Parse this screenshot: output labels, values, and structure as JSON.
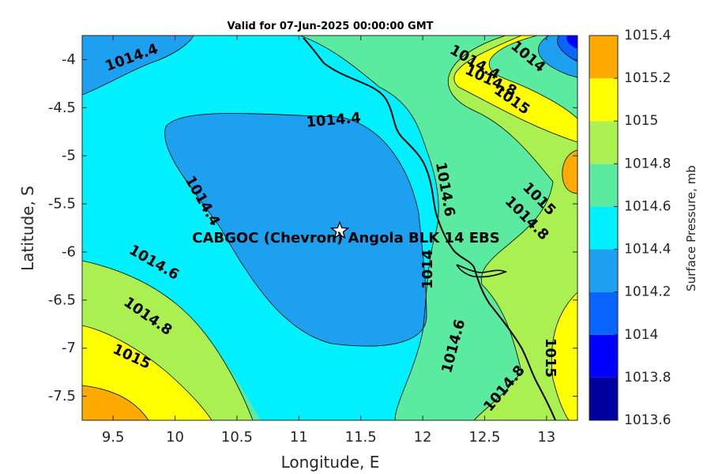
{
  "chart_data": {
    "type": "contour",
    "title": "Valid for 07-Jun-2025 00:00:00 GMT",
    "xlabel": "Longitude, E",
    "ylabel": "Latitude, S",
    "colorbar_label": "Surface Pressure, mb",
    "xlim": [
      9.25,
      13.25
    ],
    "ylim": [
      -7.75,
      -3.75
    ],
    "x_ticks": [
      9.5,
      10,
      10.5,
      11,
      11.5,
      12,
      12.5,
      13
    ],
    "x_tick_labels": [
      "9.5",
      "10",
      "10.5",
      "11",
      "11.5",
      "12",
      "12.5",
      "13"
    ],
    "y_ticks": [
      -4,
      -4.5,
      -5,
      -5.5,
      -6,
      -6.5,
      -7,
      -7.5
    ],
    "y_tick_labels": [
      "-4",
      "-4.5",
      "-5",
      "-5.5",
      "-6",
      "-6.5",
      "-7",
      "-7.5"
    ],
    "levels": [
      1013.6,
      1013.8,
      1014,
      1014.2,
      1014.4,
      1014.6,
      1014.8,
      1015,
      1015.2,
      1015.4
    ],
    "level_labels": [
      "1013.6",
      "1013.8",
      "1014",
      "1014.2",
      "1014.4",
      "1014.6",
      "1014.8",
      "1015",
      "1015.2",
      "1015.4"
    ],
    "band_colors": [
      "#00009e",
      "#0000ff",
      "#0a64ff",
      "#1ea0f0",
      "#00f0ff",
      "#5aeba0",
      "#aaf050",
      "#ffff00",
      "#ffaa00",
      "#ff5000"
    ],
    "site": {
      "label": "CABGOC (Chevron)  Angola BLK 14  EBS",
      "lon": 11.33,
      "lat": -5.78,
      "marker": "star"
    },
    "contour_labels": [
      {
        "text": "1014.4",
        "lon": 9.65,
        "lat": -3.98,
        "angle": -20
      },
      {
        "text": "1014.4",
        "lon": 11.28,
        "lat": -4.63,
        "angle": -5
      },
      {
        "text": "1014.4",
        "lon": 10.22,
        "lat": -5.47,
        "angle": 60
      },
      {
        "text": "1014.6",
        "lon": 9.83,
        "lat": -6.11,
        "angle": 30
      },
      {
        "text": "1014.8",
        "lon": 9.78,
        "lat": -6.67,
        "angle": 35
      },
      {
        "text": "1015",
        "lon": 9.65,
        "lat": -7.09,
        "angle": 25
      },
      {
        "text": "1014.6",
        "lon": 12.18,
        "lat": -5.35,
        "angle": 80
      },
      {
        "text": "1014",
        "lon": 12.04,
        "lat": -6.18,
        "angle": -90
      },
      {
        "text": "1014.6",
        "lon": 12.25,
        "lat": -6.98,
        "angle": -75
      },
      {
        "text": "1014.8",
        "lon": 12.66,
        "lat": -7.42,
        "angle": -50
      },
      {
        "text": "1014.8",
        "lon": 12.84,
        "lat": -5.65,
        "angle": 45
      },
      {
        "text": "1015",
        "lon": 12.94,
        "lat": -5.45,
        "angle": 45
      },
      {
        "text": "1015",
        "lon": 13.03,
        "lat": -7.1,
        "angle": 90
      },
      {
        "text": "1014",
        "lon": 12.85,
        "lat": -3.97,
        "angle": 40
      },
      {
        "text": "1014.4",
        "lon": 12.42,
        "lat": -4.03,
        "angle": 30
      },
      {
        "text": "1014.8",
        "lon": 12.55,
        "lat": -4.22,
        "angle": 25
      },
      {
        "text": "1015",
        "lon": 12.72,
        "lat": -4.42,
        "angle": 35
      }
    ]
  }
}
